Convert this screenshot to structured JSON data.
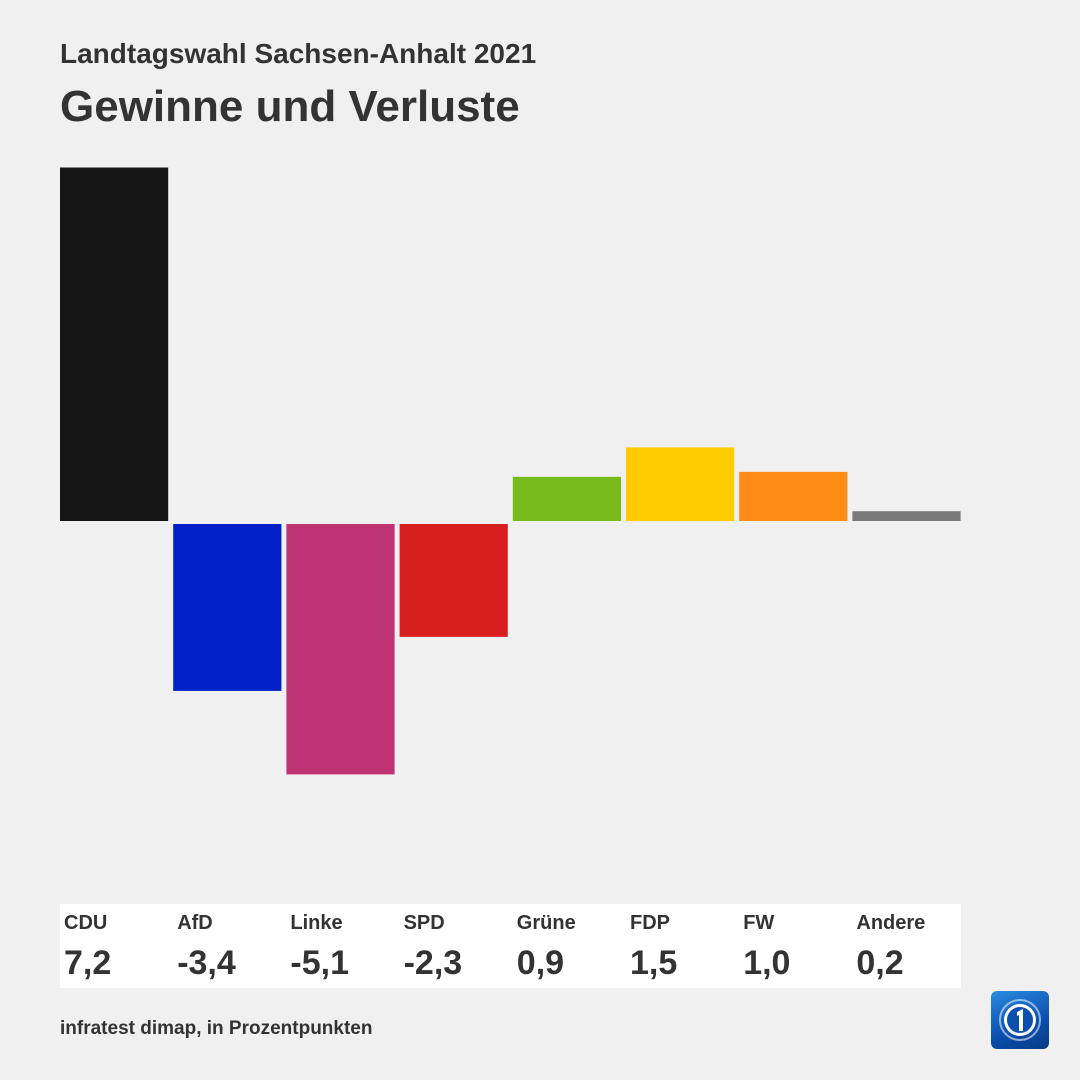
{
  "header": {
    "subtitle": "Landtagswahl Sachsen-Anhalt 2021",
    "title": "Gewinne und Verluste"
  },
  "chart_data": {
    "type": "bar",
    "title": "Gewinne und Verluste",
    "subtitle": "Landtagswahl Sachsen-Anhalt 2021",
    "categories": [
      "CDU",
      "AfD",
      "Linke",
      "SPD",
      "Grüne",
      "FDP",
      "FW",
      "Andere"
    ],
    "values": [
      7.2,
      -3.4,
      -5.1,
      -2.3,
      0.9,
      1.5,
      1.0,
      0.2
    ],
    "value_labels": [
      "7,2",
      "-3,4",
      "-5,1",
      "-2,3",
      "0,9",
      "1,5",
      "1,0",
      "0,2"
    ],
    "colors": [
      "#141414",
      "#0020c8",
      "#bd3374",
      "#d81f1f",
      "#78bb1b",
      "#ffcc00",
      "#ff8c16",
      "#7a7a7a"
    ],
    "unit_note": "infratest dimap, in Prozentpunkten",
    "ylim": [
      -7.6,
      7.2
    ],
    "grid": false,
    "legend": "none"
  },
  "footer": {
    "source": "infratest dimap, in Prozentpunkten",
    "logo_icon": "ard-tagesschau-logo-icon"
  }
}
